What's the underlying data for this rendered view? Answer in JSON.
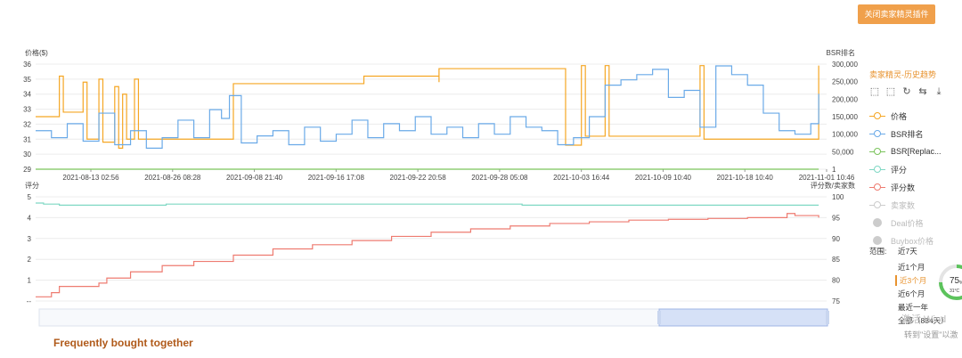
{
  "toolbar": {
    "close_plugin_label": "关闭卖家精灵插件"
  },
  "panel": {
    "title": "卖家精灵-历史趋势",
    "tool_icons": [
      "zoom-in-icon",
      "zoom-reset-icon",
      "refresh-icon",
      "swap-icon",
      "download-icon"
    ],
    "legend": [
      {
        "label": "价格",
        "color": "#f5a623",
        "active": true
      },
      {
        "label": "BSR排名",
        "color": "#6aaae8",
        "active": true
      },
      {
        "label": "BSR[Replac...",
        "color": "#7ac35b",
        "active": true
      },
      {
        "label": "评分",
        "color": "#7fd8c4",
        "active": true
      },
      {
        "label": "评分数",
        "color": "#ee7b70",
        "active": true
      },
      {
        "label": "卖家数",
        "color": "#cccccc",
        "active": false
      },
      {
        "label": "Deal价格",
        "color": "#cccccc",
        "active": false,
        "dot": true
      },
      {
        "label": "Buybox价格",
        "color": "#cccccc",
        "active": false,
        "dot": true
      }
    ],
    "range_label": "范围:",
    "range_options": [
      "近7天",
      "近1个月",
      "近3个月",
      "近6个月",
      "最近一年",
      "全部（884天）"
    ],
    "range_active_index": 2
  },
  "widget": {
    "percent": "75",
    "percent_unit": "%",
    "temp": "31°C"
  },
  "watermark": {
    "line1": "激活 Wind",
    "line2": "转到\"设置\"以激"
  },
  "footer": {
    "fbt_label": "Frequently bought together"
  },
  "chart_data": [
    {
      "type": "line",
      "left_axis_label": "价格($)",
      "right_axis_label": "BSR排名",
      "left_ylim": [
        29,
        36
      ],
      "right_ylim": [
        1,
        300000
      ],
      "left_ticks": [
        "36",
        "35",
        "34",
        "33",
        "32",
        "31",
        "30",
        "29"
      ],
      "right_ticks": [
        "300,000",
        "250,000",
        "200,000",
        "150,000",
        "100,000",
        "50,000",
        "1"
      ],
      "x_tick_labels": [
        "2021-08-13 02:56",
        "2021-08-26 08:28",
        "2021-09-08 21:40",
        "2021-09-16 17:08",
        "2021-09-22 20:58",
        "2021-09-28 05:08",
        "2021-10-03 16:44",
        "2021-10-09 10:40",
        "2021-10-18 10:40",
        "2021-11-01 10:46"
      ],
      "grid": true,
      "series": [
        {
          "name": "价格",
          "axis": "left",
          "color": "#f5a623",
          "x": [
            0,
            0.03,
            0.035,
            0.06,
            0.065,
            0.08,
            0.085,
            0.1,
            0.105,
            0.11,
            0.115,
            0.125,
            0.13,
            0.245,
            0.25,
            0.41,
            0.415,
            0.505,
            0.51,
            0.51,
            0.665,
            0.67,
            0.67,
            0.69,
            0.695,
            0.72,
            0.725,
            0.84,
            0.845,
            0.99
          ],
          "y": [
            32.5,
            35.2,
            32.8,
            34.8,
            31.0,
            35.0,
            30.8,
            34.5,
            30.4,
            34.0,
            31.0,
            35.0,
            31.0,
            31.0,
            34.7,
            34.7,
            35.2,
            35.2,
            34.8,
            35.7,
            35.7,
            30.6,
            30.6,
            35.9,
            31.2,
            35.9,
            31.2,
            35.9,
            31.0,
            35.9
          ]
        },
        {
          "name": "BSR排名",
          "axis": "right",
          "color": "#6aaae8",
          "x": [
            0,
            0.02,
            0.04,
            0.06,
            0.08,
            0.1,
            0.12,
            0.14,
            0.16,
            0.18,
            0.2,
            0.22,
            0.235,
            0.245,
            0.26,
            0.28,
            0.3,
            0.32,
            0.34,
            0.36,
            0.38,
            0.4,
            0.42,
            0.44,
            0.46,
            0.48,
            0.5,
            0.52,
            0.54,
            0.56,
            0.58,
            0.6,
            0.62,
            0.64,
            0.66,
            0.68,
            0.7,
            0.72,
            0.74,
            0.76,
            0.78,
            0.8,
            0.82,
            0.84,
            0.86,
            0.88,
            0.9,
            0.92,
            0.94,
            0.96,
            0.98,
            0.99
          ],
          "y": [
            110000,
            90000,
            130000,
            80000,
            160000,
            70000,
            110000,
            60000,
            90000,
            140000,
            90000,
            170000,
            145000,
            210000,
            75000,
            95000,
            110000,
            70000,
            120000,
            80000,
            100000,
            140000,
            90000,
            130000,
            110000,
            150000,
            100000,
            120000,
            90000,
            130000,
            100000,
            150000,
            120000,
            110000,
            70000,
            90000,
            150000,
            240000,
            255000,
            270000,
            285000,
            205000,
            225000,
            120000,
            295000,
            270000,
            240000,
            160000,
            110000,
            100000,
            130000,
            215000
          ]
        },
        {
          "name": "BSR[Replac...",
          "axis": "right",
          "color": "#7ac35b",
          "x": [
            0,
            0.99
          ],
          "y": [
            1,
            1
          ]
        }
      ]
    },
    {
      "type": "line",
      "left_axis_label": "评分",
      "right_axis_label": "评分数/卖家数",
      "left_ylim": [
        0,
        5
      ],
      "right_ylim": [
        75,
        100
      ],
      "left_ticks": [
        "5",
        "4",
        "3",
        "2",
        "1",
        "--"
      ],
      "right_ticks": [
        "100",
        "95",
        "90",
        "85",
        "80",
        "75"
      ],
      "grid": true,
      "series": [
        {
          "name": "评分",
          "axis": "left",
          "color": "#7fd8c4",
          "x": [
            0,
            0.01,
            0.03,
            0.16,
            0.165,
            0.61,
            0.615,
            0.99
          ],
          "y": [
            4.7,
            4.65,
            4.6,
            4.6,
            4.65,
            4.65,
            4.6,
            4.6
          ]
        },
        {
          "name": "评分数",
          "axis": "right",
          "color": "#ee7b70",
          "x": [
            0,
            0.02,
            0.03,
            0.08,
            0.09,
            0.12,
            0.16,
            0.2,
            0.25,
            0.3,
            0.35,
            0.4,
            0.45,
            0.5,
            0.55,
            0.6,
            0.65,
            0.7,
            0.75,
            0.8,
            0.85,
            0.9,
            0.95,
            0.96,
            0.99
          ],
          "y": [
            76,
            77,
            78.5,
            79.3,
            80.5,
            82,
            83.5,
            84.5,
            86,
            87.5,
            88.5,
            89.5,
            90.5,
            91.5,
            92.3,
            93,
            93.6,
            94,
            94.4,
            94.6,
            94.8,
            95,
            96,
            95.5,
            95
          ]
        }
      ]
    }
  ]
}
